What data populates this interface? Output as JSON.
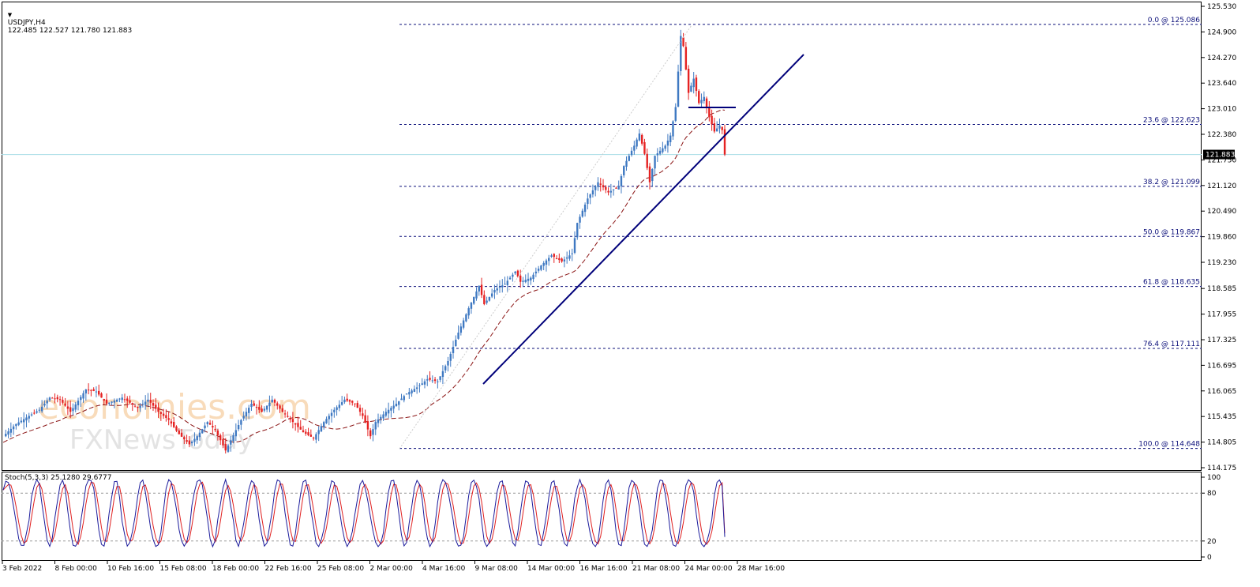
{
  "header": {
    "symbol": "USDJPY,H4",
    "ohlc": "122.485 122.527 121.780 121.883",
    "collapse_icon": "triangle-down-icon"
  },
  "watermark": {
    "brand": "economies.com",
    "sub": "FXNewsToday"
  },
  "stoch_header": "Stoch(5,3,3) 25.1280 29.6777",
  "colors": {
    "bull": "#3f79c2",
    "bear": "#e52222",
    "fib": "#0b0f7a",
    "trend": "#00007a",
    "ma": "#8b1515",
    "current_line": "#a6dbe6",
    "stoch_main": "#1b1b9c",
    "stoch_signal": "#e02020"
  },
  "chart_data": {
    "type": "candlestick",
    "title": "USDJPY,H4",
    "y_range": [
      114.175,
      125.53
    ],
    "y_ticks": [
      "125.530",
      "124.900",
      "124.270",
      "123.640",
      "123.010",
      "122.380",
      "121.750",
      "121.120",
      "120.490",
      "119.860",
      "119.230",
      "118.585",
      "117.955",
      "117.325",
      "116.695",
      "116.065",
      "115.435",
      "114.805",
      "114.175"
    ],
    "x_ticks": [
      "3 Feb 2022",
      "8 Feb 00:00",
      "10 Feb 16:00",
      "15 Feb 08:00",
      "18 Feb 00:00",
      "22 Feb 16:00",
      "25 Feb 08:00",
      "2 Mar 00:00",
      "4 Mar 16:00",
      "9 Mar 08:00",
      "14 Mar 00:00",
      "16 Mar 16:00",
      "21 Mar 08:00",
      "24 Mar 00:00",
      "28 Mar 16:00"
    ],
    "current_price": "121.883",
    "current_value": 121.883,
    "fibonacci": [
      {
        "label": "0.0 @ 125.086",
        "value": 125.086
      },
      {
        "label": "23.6 @ 122.623",
        "value": 122.623
      },
      {
        "label": "38.2 @ 121.099",
        "value": 121.099
      },
      {
        "label": "50.0 @ 119.867",
        "value": 119.867
      },
      {
        "label": "61.8 @ 118.635",
        "value": 118.635
      },
      {
        "label": "76.4 @ 117.111",
        "value": 117.111
      },
      {
        "label": "100.0 @ 114.648",
        "value": 114.648
      }
    ],
    "price_path": [
      [
        0,
        114.95
      ],
      [
        5,
        115.25
      ],
      [
        10,
        115.45
      ],
      [
        14,
        115.6
      ],
      [
        18,
        115.9
      ],
      [
        22,
        115.85
      ],
      [
        26,
        115.55
      ],
      [
        32,
        116.1
      ],
      [
        36,
        116.05
      ],
      [
        40,
        115.75
      ],
      [
        46,
        115.9
      ],
      [
        52,
        115.65
      ],
      [
        56,
        115.85
      ],
      [
        60,
        115.55
      ],
      [
        64,
        115.35
      ],
      [
        68,
        115.0
      ],
      [
        72,
        114.75
      ],
      [
        75,
        114.95
      ],
      [
        79,
        115.3
      ],
      [
        82,
        115.1
      ],
      [
        86,
        114.6
      ],
      [
        92,
        115.35
      ],
      [
        96,
        115.75
      ],
      [
        100,
        115.55
      ],
      [
        104,
        115.85
      ],
      [
        108,
        115.55
      ],
      [
        112,
        115.3
      ],
      [
        116,
        115.05
      ],
      [
        120,
        114.9
      ],
      [
        124,
        115.3
      ],
      [
        128,
        115.6
      ],
      [
        132,
        115.85
      ],
      [
        136,
        115.75
      ],
      [
        139,
        115.45
      ],
      [
        142,
        114.95
      ],
      [
        144,
        115.3
      ],
      [
        148,
        115.55
      ],
      [
        152,
        115.75
      ],
      [
        156,
        116.0
      ],
      [
        160,
        116.15
      ],
      [
        164,
        116.35
      ],
      [
        168,
        116.3
      ],
      [
        172,
        116.8
      ],
      [
        176,
        117.5
      ],
      [
        180,
        118.1
      ],
      [
        184,
        118.65
      ],
      [
        186,
        118.2
      ],
      [
        190,
        118.55
      ],
      [
        194,
        118.7
      ],
      [
        198,
        119.0
      ],
      [
        200,
        118.75
      ],
      [
        204,
        118.85
      ],
      [
        208,
        119.15
      ],
      [
        212,
        119.4
      ],
      [
        216,
        119.25
      ],
      [
        220,
        119.45
      ],
      [
        222,
        120.2
      ],
      [
        226,
        120.8
      ],
      [
        230,
        121.2
      ],
      [
        234,
        120.95
      ],
      [
        238,
        121.1
      ],
      [
        240,
        121.6
      ],
      [
        244,
        122.1
      ],
      [
        246,
        122.4
      ],
      [
        248,
        121.9
      ],
      [
        250,
        121.2
      ],
      [
        252,
        121.85
      ],
      [
        256,
        122.1
      ],
      [
        258,
        122.35
      ],
      [
        260,
        123.05
      ],
      [
        262,
        124.8
      ],
      [
        263,
        124.55
      ],
      [
        265,
        123.4
      ],
      [
        267,
        123.75
      ],
      [
        269,
        123.15
      ],
      [
        271,
        123.3
      ],
      [
        273,
        122.8
      ],
      [
        275,
        122.45
      ],
      [
        277,
        122.6
      ],
      [
        278,
        122.485
      ],
      [
        279,
        121.883
      ]
    ],
    "stochastic": {
      "title": "Stoch(5,3,3) 25.1280 29.6777",
      "params": "5,3,3",
      "main_last": 25.128,
      "signal_last": 29.6777,
      "levels": [
        80,
        20
      ],
      "y_ticks": [
        "100",
        "80",
        "20",
        "0"
      ]
    }
  }
}
